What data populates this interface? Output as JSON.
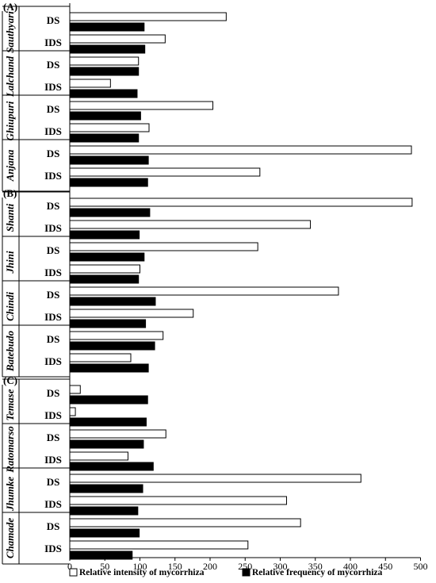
{
  "chart_data": {
    "type": "bar",
    "orientation": "horizontal",
    "xlim": [
      0,
      500
    ],
    "xticks": [
      "0",
      "50",
      "100",
      "150",
      "200",
      "250",
      "300",
      "350",
      "400",
      "450",
      "500"
    ],
    "grid": false,
    "legend_position": "bottom",
    "series": [
      {
        "name": "Relative intensity of mycorrhiza",
        "color": "#ffffff",
        "key": "intensity"
      },
      {
        "name": "Relative frequency of mycorrhiza",
        "color": "#000000",
        "key": "frequency"
      }
    ],
    "panels": [
      {
        "label": "(A)",
        "cultivars": [
          {
            "name": "Sauthyari",
            "conditions": [
              {
                "label": "DS",
                "intensity": 223,
                "frequency": 106
              },
              {
                "label": "IDS",
                "intensity": 136,
                "frequency": 107
              }
            ]
          },
          {
            "name": "Lalchand",
            "conditions": [
              {
                "label": "DS",
                "intensity": 98,
                "frequency": 98
              },
              {
                "label": "IDS",
                "intensity": 58,
                "frequency": 96
              }
            ]
          },
          {
            "name": "Ghiupuri",
            "conditions": [
              {
                "label": "DS",
                "intensity": 204,
                "frequency": 101
              },
              {
                "label": "IDS",
                "intensity": 113,
                "frequency": 98
              }
            ]
          },
          {
            "name": "Anjana",
            "conditions": [
              {
                "label": "DS",
                "intensity": 487,
                "frequency": 112
              },
              {
                "label": "IDS",
                "intensity": 271,
                "frequency": 111
              }
            ]
          }
        ]
      },
      {
        "label": "(B)",
        "cultivars": [
          {
            "name": "Shanti",
            "conditions": [
              {
                "label": "DS",
                "intensity": 488,
                "frequency": 114
              },
              {
                "label": "IDS",
                "intensity": 343,
                "frequency": 99
              }
            ]
          },
          {
            "name": "Jhini",
            "conditions": [
              {
                "label": "DS",
                "intensity": 268,
                "frequency": 106
              },
              {
                "label": "IDS",
                "intensity": 100,
                "frequency": 98
              }
            ]
          },
          {
            "name": "Chindi",
            "conditions": [
              {
                "label": "DS",
                "intensity": 383,
                "frequency": 122
              },
              {
                "label": "IDS",
                "intensity": 176,
                "frequency": 108
              }
            ]
          },
          {
            "name": "Batebudo",
            "conditions": [
              {
                "label": "DS",
                "intensity": 133,
                "frequency": 121
              },
              {
                "label": "IDS",
                "intensity": 87,
                "frequency": 112
              }
            ]
          }
        ]
      },
      {
        "label": "(C)",
        "cultivars": [
          {
            "name": "Temase",
            "conditions": [
              {
                "label": "DS",
                "intensity": 15,
                "frequency": 111
              },
              {
                "label": "IDS",
                "intensity": 8,
                "frequency": 109
              }
            ]
          },
          {
            "name": "Ratomarso",
            "conditions": [
              {
                "label": "DS",
                "intensity": 137,
                "frequency": 105
              },
              {
                "label": "IDS",
                "intensity": 83,
                "frequency": 119
              }
            ]
          },
          {
            "name": "Jhumke",
            "conditions": [
              {
                "label": "DS",
                "intensity": 415,
                "frequency": 104
              },
              {
                "label": "IDS",
                "intensity": 309,
                "frequency": 97
              }
            ]
          },
          {
            "name": "Chamade",
            "conditions": [
              {
                "label": "DS",
                "intensity": 329,
                "frequency": 99
              },
              {
                "label": "IDS",
                "intensity": 254,
                "frequency": 89
              }
            ]
          }
        ]
      }
    ]
  }
}
